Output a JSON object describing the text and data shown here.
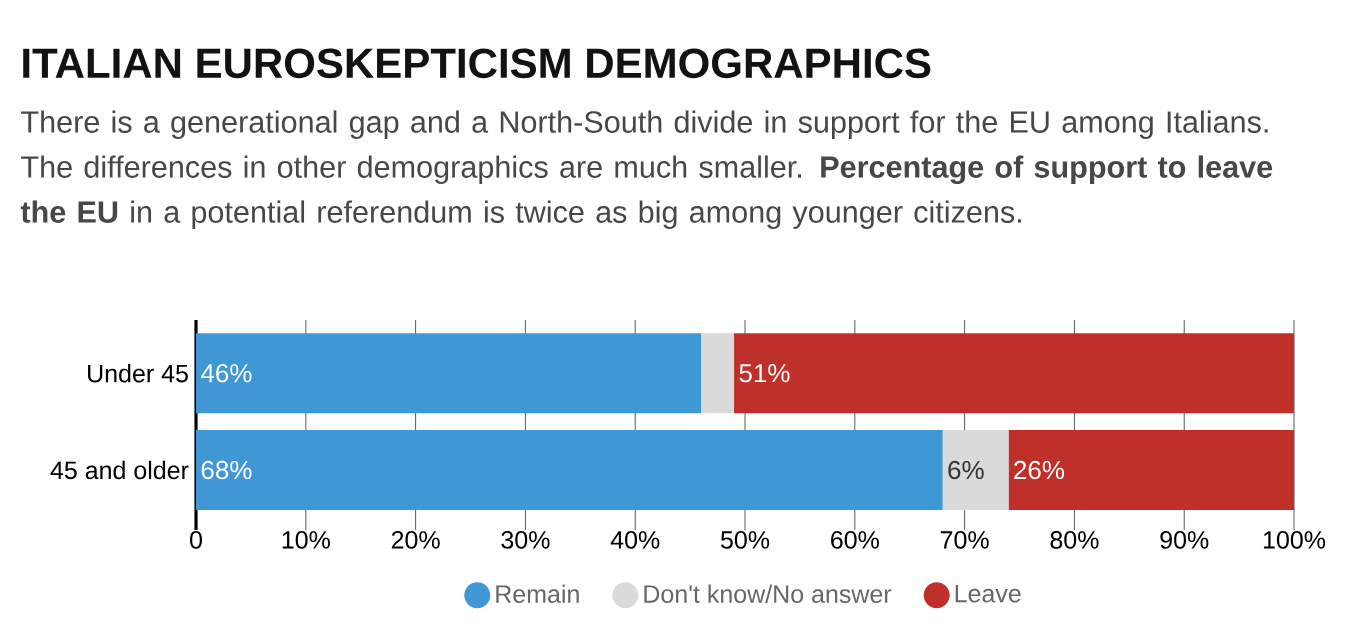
{
  "chart_data": {
    "type": "bar",
    "orientation": "horizontal",
    "stacked": true,
    "title": "ITALIAN EUROSKEPTICISM DEMOGRAPHICS",
    "subtitle": "There is a generational gap and a North-South divide in support for the EU among Italians. The differences in other demographics are much smaller. **Percentage of support to leave the EU** in a potential referendum is twice as big among younger citizens.",
    "categories": [
      "Under 45",
      "45 and older"
    ],
    "series": [
      {
        "name": "Remain",
        "color": "#3f97d6",
        "values": [
          46,
          68
        ],
        "value_labels": [
          "46%",
          "68%"
        ]
      },
      {
        "name": "Don't know/No answer",
        "color": "#dadada",
        "values": [
          3,
          6
        ],
        "value_labels": [
          null,
          "6%"
        ]
      },
      {
        "name": "Leave",
        "color": "#c0302b",
        "values": [
          51,
          26
        ],
        "value_labels": [
          "51%",
          "26%"
        ]
      }
    ],
    "xlim": [
      0,
      100
    ],
    "xticks": [
      0,
      {
        "value": 10,
        "label": "10%"
      },
      {
        "value": 20,
        "label": "20%"
      },
      {
        "value": 30,
        "label": "30%"
      },
      {
        "value": 40,
        "label": "40%"
      },
      {
        "value": 50,
        "label": "50%"
      },
      {
        "value": 60,
        "label": "60%"
      },
      {
        "value": 70,
        "label": "70%"
      },
      {
        "value": 80,
        "label": "80%"
      },
      {
        "value": 90,
        "label": "90%"
      },
      {
        "value": 100,
        "label": "100%"
      }
    ],
    "grid": "x",
    "legend": "bottom"
  }
}
